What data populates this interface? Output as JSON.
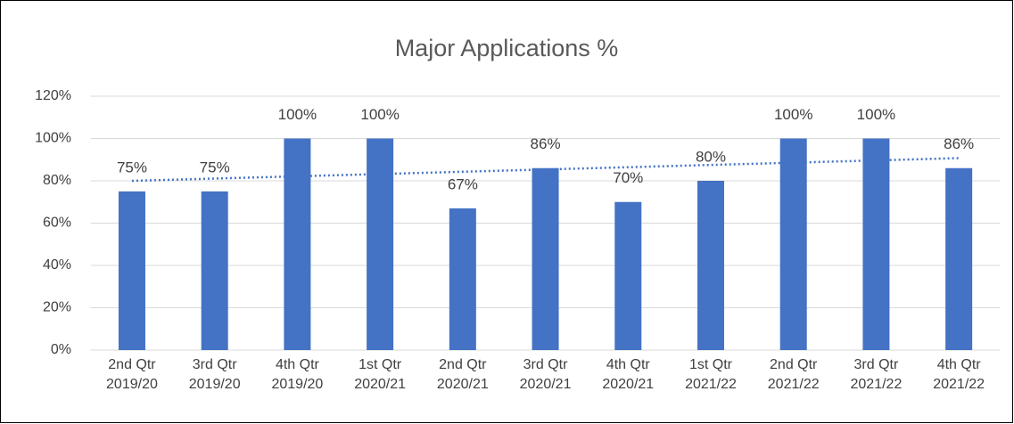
{
  "chart_data": {
    "type": "bar",
    "title": "Major Applications %",
    "categories": [
      "2nd Qtr\n2019/20",
      "3rd Qtr\n2019/20",
      "4th Qtr\n2019/20",
      "1st Qtr\n2020/21",
      "2nd Qtr\n2020/21",
      "3rd Qtr\n2020/21",
      "4th Qtr\n2020/21",
      "1st Qtr\n2021/22",
      "2nd Qtr\n2021/22",
      "3rd Qtr\n2021/22",
      "4th Qtr\n2021/22"
    ],
    "values": [
      75,
      75,
      100,
      100,
      67,
      86,
      70,
      80,
      100,
      100,
      86
    ],
    "value_labels": [
      "75%",
      "75%",
      "100%",
      "100%",
      "67%",
      "86%",
      "70%",
      "80%",
      "100%",
      "100%",
      "86%"
    ],
    "color": "#4472c4",
    "ylim": [
      0,
      120
    ],
    "yticks": [
      {
        "value": 0,
        "label": "0%"
      },
      {
        "value": 20,
        "label": "20%"
      },
      {
        "value": 40,
        "label": "40%"
      },
      {
        "value": 60,
        "label": "60%"
      },
      {
        "value": 80,
        "label": "80%"
      },
      {
        "value": 100,
        "label": "100%"
      },
      {
        "value": 120,
        "label": "120%"
      }
    ],
    "grid": true,
    "trendline": "linear"
  }
}
